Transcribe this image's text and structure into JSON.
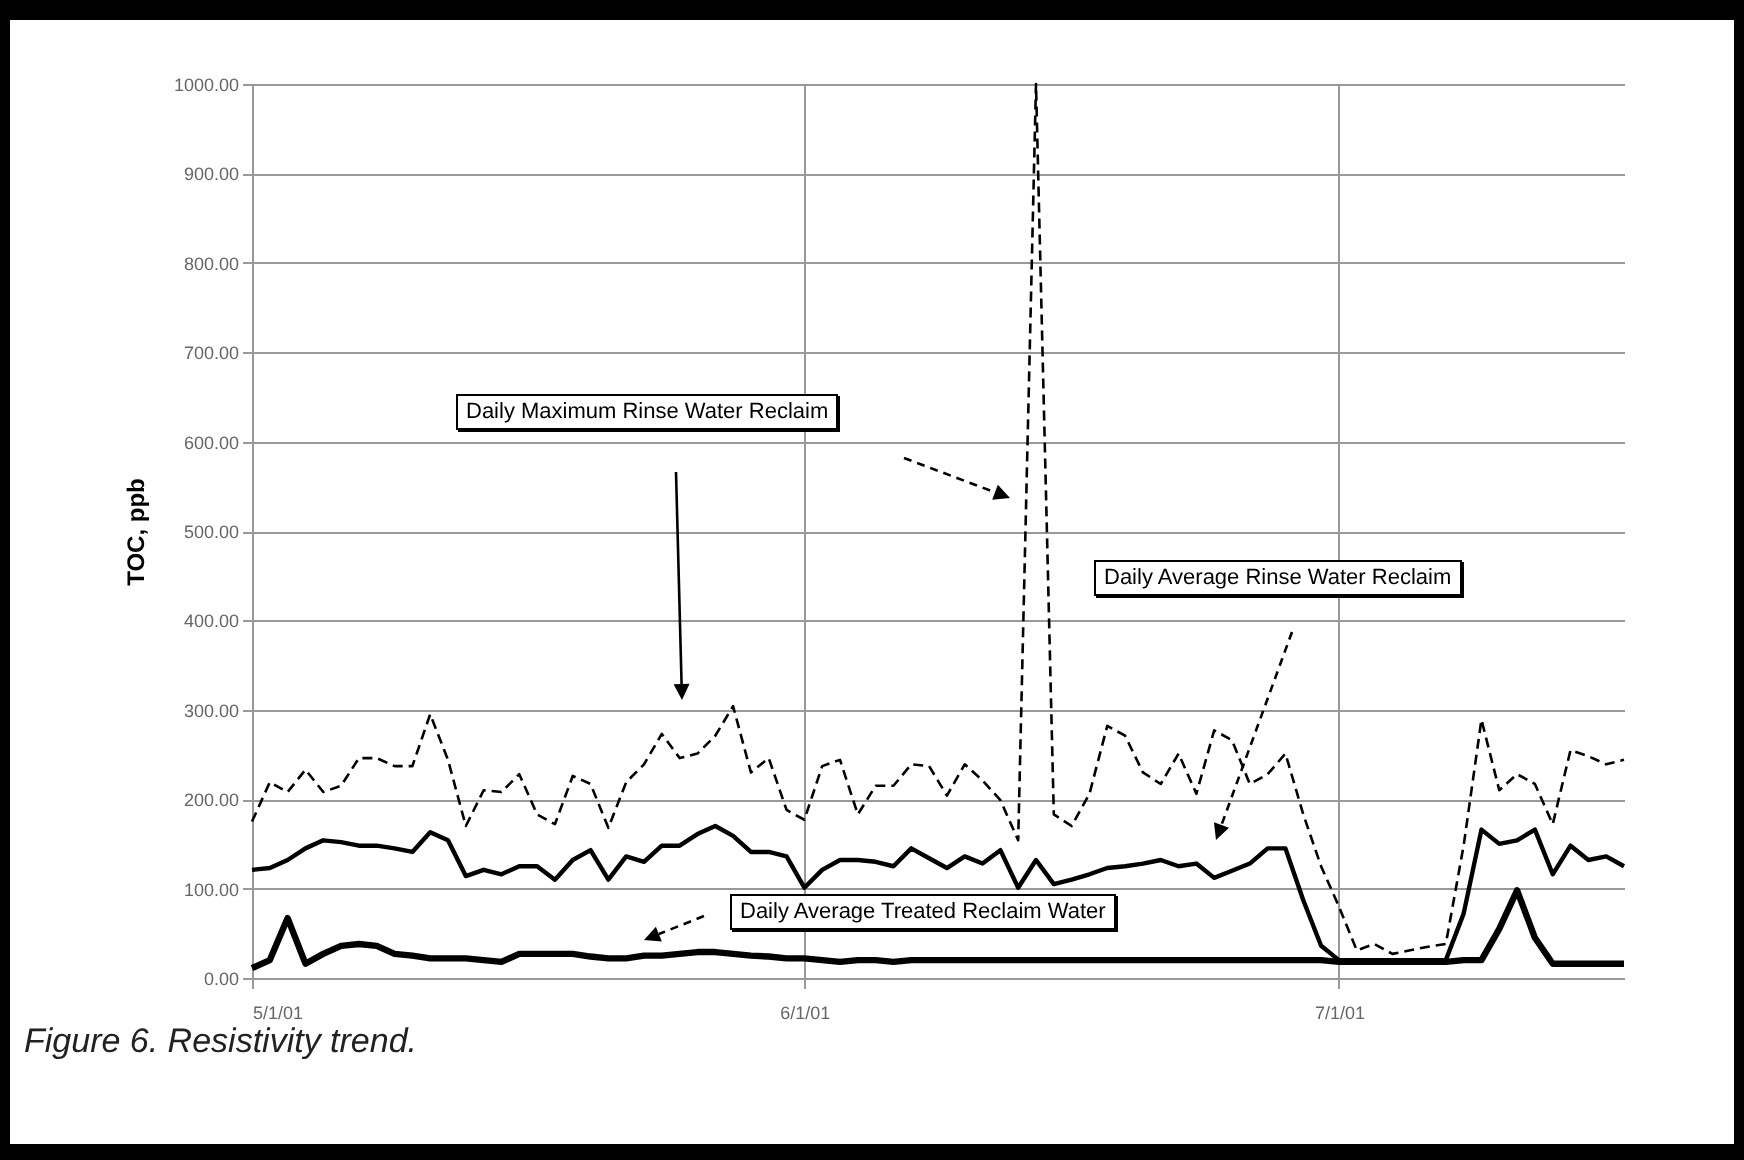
{
  "chart_data": {
    "type": "line",
    "ylabel": "TOC, ppb",
    "annotations": [
      "Figure 6.  Resistivity trend."
    ],
    "grid": true,
    "xlim": [
      "--05-01",
      "--07-17"
    ],
    "xticks": [
      {
        "value": "--05-01",
        "label": "5/1/01"
      },
      {
        "value": "--06-01",
        "label": "6/1/01"
      },
      {
        "value": "--07-01",
        "label": "7/1/01"
      }
    ],
    "ylim": [
      0,
      1000
    ],
    "yticks": [
      {
        "value": 0,
        "label": "0.00"
      },
      {
        "value": 100,
        "label": "100.00"
      },
      {
        "value": 200,
        "label": "200.00"
      },
      {
        "value": 300,
        "label": "300.00"
      },
      {
        "value": 400,
        "label": "400.00"
      },
      {
        "value": 500,
        "label": "500.00"
      },
      {
        "value": 600,
        "label": "600.00"
      },
      {
        "value": 700,
        "label": "700.00"
      },
      {
        "value": 800,
        "label": "800.00"
      },
      {
        "value": 900,
        "label": "900.00"
      },
      {
        "value": 1000,
        "label": "1000.00"
      }
    ],
    "x": [
      "--05-01",
      "--05-02",
      "--05-03",
      "--05-04",
      "--05-05",
      "--05-06",
      "--05-07",
      "--05-08",
      "--05-09",
      "--05-10",
      "--05-11",
      "--05-12",
      "--05-13",
      "--05-14",
      "--05-15",
      "--05-16",
      "--05-17",
      "--05-18",
      "--05-19",
      "--05-20",
      "--05-21",
      "--05-22",
      "--05-23",
      "--05-24",
      "--05-25",
      "--05-26",
      "--05-27",
      "--05-28",
      "--05-29",
      "--05-30",
      "--05-31",
      "--06-01",
      "--06-02",
      "--06-03",
      "--06-04",
      "--06-05",
      "--06-06",
      "--06-07",
      "--06-08",
      "--06-09",
      "--06-10",
      "--06-11",
      "--06-12",
      "--06-13",
      "--06-14",
      "--06-15",
      "--06-16",
      "--06-17",
      "--06-18",
      "--06-19",
      "--06-20",
      "--06-21",
      "--06-22",
      "--06-23",
      "--06-24",
      "--06-25",
      "--06-26",
      "--06-27",
      "--06-28",
      "--06-29",
      "--06-30",
      "--07-01",
      "--07-02",
      "--07-03",
      "--07-04",
      "--07-05",
      "--07-06",
      "--07-07",
      "--07-08",
      "--07-09",
      "--07-10",
      "--07-11",
      "--07-12",
      "--07-13",
      "--07-14",
      "--07-15",
      "--07-16",
      "--07-17"
    ],
    "series": [
      {
        "name": "Daily Maximum Rinse Water Reclaim",
        "color": "#000000",
        "line_style": "dashed",
        "values": [
          175,
          219,
          208,
          233,
          208,
          215,
          246,
          246,
          237,
          237,
          295,
          244,
          170,
          210,
          208,
          228,
          183,
          172,
          226,
          217,
          168,
          219,
          239,
          273,
          246,
          251,
          271,
          304,
          230,
          246,
          188,
          177,
          237,
          244,
          183,
          215,
          215,
          239,
          237,
          204,
          239,
          221,
          199,
          154,
          1000,
          183,
          170,
          206,
          282,
          271,
          230,
          217,
          251,
          206,
          277,
          266,
          217,
          228,
          251,
          183,
          125,
          80,
          31,
          38,
          27,
          31,
          35,
          38,
          148,
          289,
          210,
          228,
          217,
          172,
          255,
          248,
          239,
          244
        ]
      },
      {
        "name": "Daily Average Rinse Water Reclaim",
        "color": "#000000",
        "line_style": "solid",
        "values": [
          121,
          123,
          132,
          145,
          154,
          152,
          148,
          148,
          145,
          141,
          163,
          154,
          114,
          121,
          116,
          125,
          125,
          110,
          132,
          143,
          110,
          136,
          130,
          148,
          148,
          161,
          170,
          159,
          141,
          141,
          136,
          101,
          121,
          132,
          132,
          130,
          125,
          145,
          134,
          123,
          136,
          128,
          143,
          101,
          132,
          105,
          110,
          116,
          123,
          125,
          128,
          132,
          125,
          128,
          112,
          120,
          128,
          145,
          145,
          87,
          36,
          20,
          20,
          20,
          20,
          20,
          20,
          20,
          72,
          166,
          150,
          154,
          166,
          116,
          148,
          132,
          136,
          125
        ]
      },
      {
        "name": "Daily Average Treated Reclaim Water",
        "color": "#000000",
        "line_style": "solid",
        "values": [
          11,
          20,
          67,
          16,
          27,
          36,
          38,
          36,
          27,
          25,
          22,
          22,
          22,
          20,
          18,
          27,
          27,
          27,
          27,
          24,
          22,
          22,
          25,
          25,
          27,
          29,
          29,
          27,
          25,
          24,
          22,
          22,
          20,
          18,
          20,
          20,
          18,
          20,
          20,
          20,
          20,
          20,
          20,
          20,
          20,
          20,
          20,
          20,
          20,
          20,
          20,
          20,
          20,
          20,
          20,
          20,
          20,
          20,
          20,
          20,
          20,
          18,
          18,
          18,
          18,
          18,
          18,
          18,
          20,
          20,
          55,
          98,
          45,
          16,
          16,
          16,
          16,
          16
        ]
      }
    ]
  }
}
